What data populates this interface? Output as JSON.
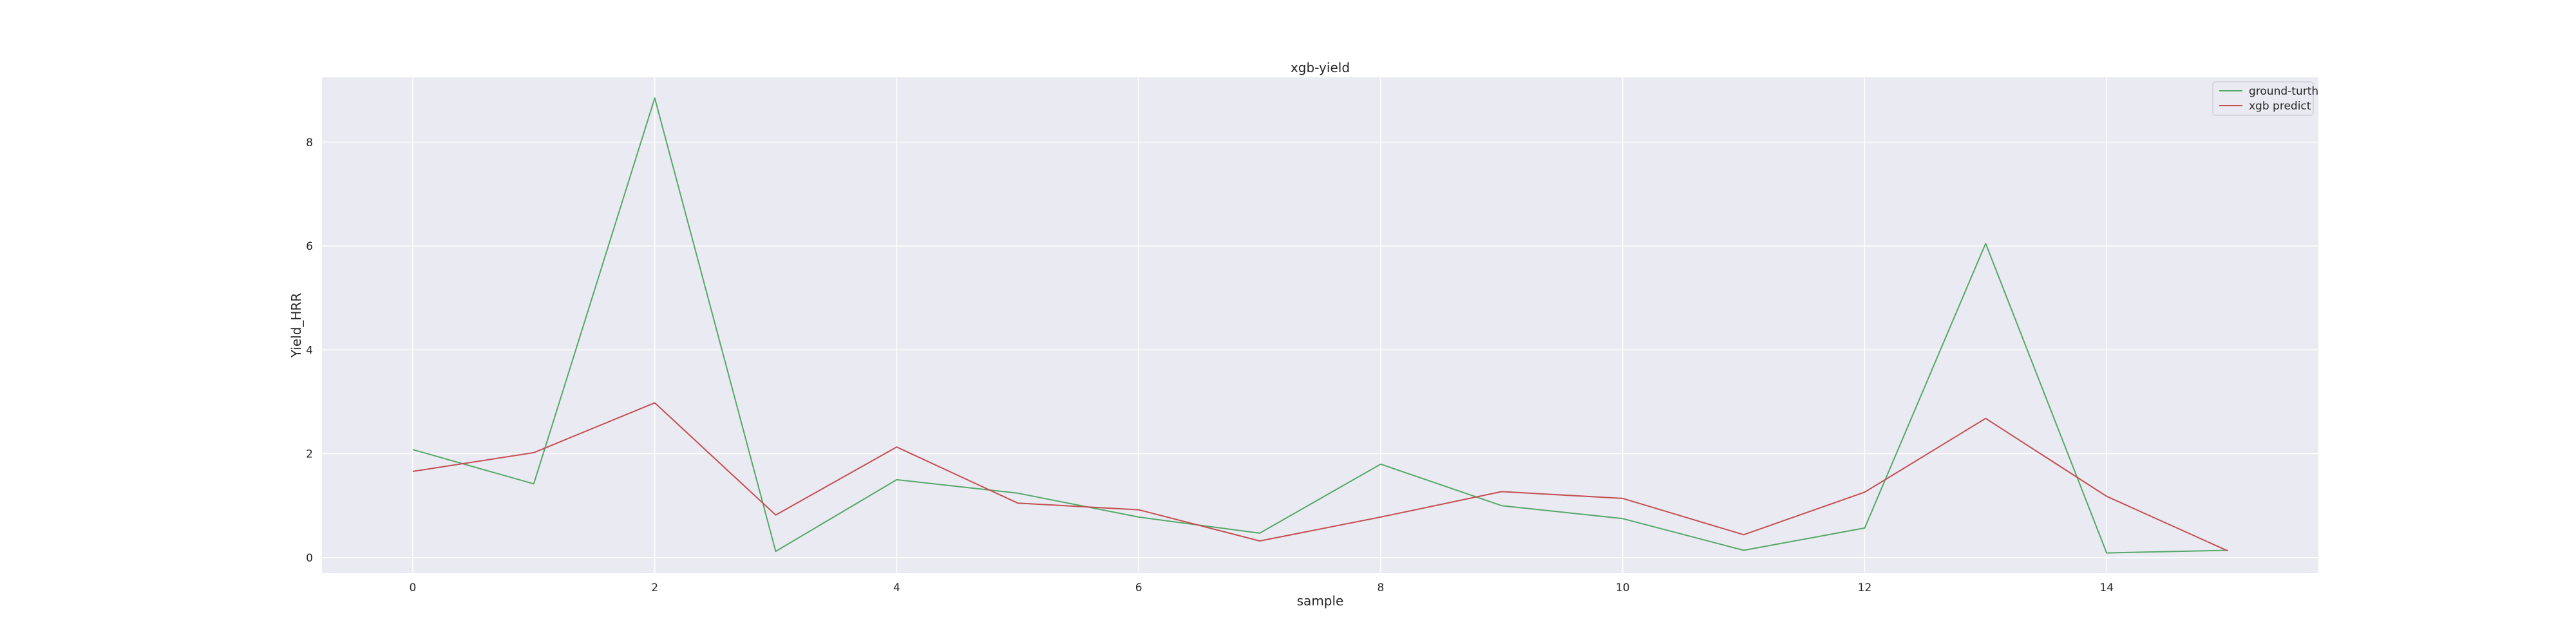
{
  "chart_data": {
    "type": "line",
    "title": "xgb-yield",
    "xlabel": "sample",
    "ylabel": "Yield_HRR",
    "x": [
      0,
      1,
      2,
      3,
      4,
      5,
      6,
      7,
      8,
      9,
      10,
      11,
      12,
      13,
      14,
      15
    ],
    "xlim": [
      -0.75,
      15.75
    ],
    "ylim": [
      -0.3,
      9.25
    ],
    "xticks": [
      0,
      2,
      4,
      6,
      8,
      10,
      12,
      14
    ],
    "yticks": [
      0,
      2,
      4,
      6,
      8
    ],
    "grid": true,
    "legend_position": "top-right",
    "series": [
      {
        "name": "ground-turth",
        "color": "#55a868",
        "values": [
          2.08,
          1.42,
          8.85,
          0.12,
          1.5,
          1.24,
          0.78,
          0.47,
          1.8,
          1.0,
          0.75,
          0.14,
          0.57,
          6.05,
          0.09,
          0.14
        ]
      },
      {
        "name": "xgb predict",
        "color": "#c44e52",
        "values": [
          1.66,
          2.02,
          2.98,
          0.82,
          2.13,
          1.05,
          0.92,
          0.32,
          0.78,
          1.27,
          1.14,
          0.44,
          1.26,
          2.68,
          1.18,
          0.13
        ]
      }
    ],
    "colors": {
      "plot_background": "#eaeaf2",
      "grid": "#ffffff",
      "text": "#262626"
    }
  }
}
